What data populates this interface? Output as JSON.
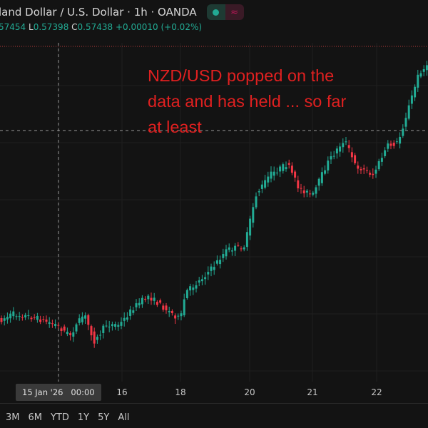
{
  "header": {
    "title": "land Dollar / U.S. Dollar · 1h · OANDA",
    "market_status_icon": "market-open-dot-icon",
    "indicator_icon": "approx-wave-icon",
    "ohlc": {
      "o_value": "57454",
      "l_label": "L",
      "l_value": "0.57398",
      "c_label": "C",
      "c_value": "0.57438",
      "change": "+0.00010 (+0.02%)"
    }
  },
  "annotation": {
    "lines": [
      "NZD/USD popped on the",
      "data and has held ... so far",
      "at least"
    ],
    "color": "#e02020"
  },
  "time_axis": {
    "crosshair_label": "15 Jan '26   00:00",
    "ticks": [
      "16",
      "18",
      "20",
      "21",
      "22"
    ]
  },
  "range_buttons": [
    "3M",
    "6M",
    "YTD",
    "1Y",
    "5Y",
    "All"
  ],
  "chart_data": {
    "type": "candlestick",
    "symbol": "NZD/USD",
    "interval": "1h",
    "trend": "rising",
    "x_ticks": [
      "15 Jan '26 00:00",
      "16",
      "18",
      "20",
      "21",
      "22"
    ],
    "grid": true,
    "colors": {
      "up": "#22ab94",
      "down": "#f23645",
      "background": "#131313"
    }
  }
}
